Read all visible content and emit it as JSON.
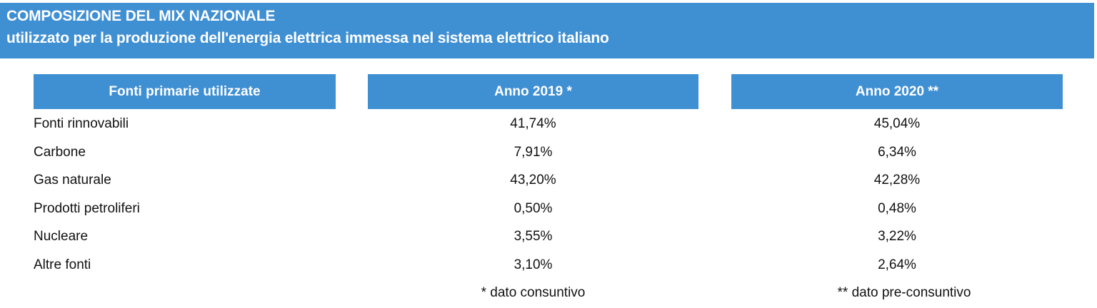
{
  "header": {
    "title": "COMPOSIZIONE DEL MIX NAZIONALE",
    "subtitle": "utilizzato per la produzione dell'energia elettrica immessa nel sistema elettrico italiano",
    "accent_color": "#3f8fd3"
  },
  "table": {
    "columns": [
      "Fonti primarie utilizzate",
      "Anno 2019 *",
      "Anno 2020 **"
    ],
    "rows": [
      {
        "label": "Fonti rinnovabili",
        "y2019": "41,74%",
        "y2020": "45,04%"
      },
      {
        "label": "Carbone",
        "y2019": "7,91%",
        "y2020": "6,34%"
      },
      {
        "label": "Gas naturale",
        "y2019": "43,20%",
        "y2020": "42,28%"
      },
      {
        "label": "Prodotti petroliferi",
        "y2019": "0,50%",
        "y2020": "0,48%"
      },
      {
        "label": "Nucleare",
        "y2019": "3,55%",
        "y2020": "3,22%"
      },
      {
        "label": "Altre fonti",
        "y2019": "3,10%",
        "y2020": "2,64%"
      }
    ]
  },
  "notes": {
    "y2019": "* dato consuntivo",
    "y2020": "** dato pre-consuntivo"
  }
}
